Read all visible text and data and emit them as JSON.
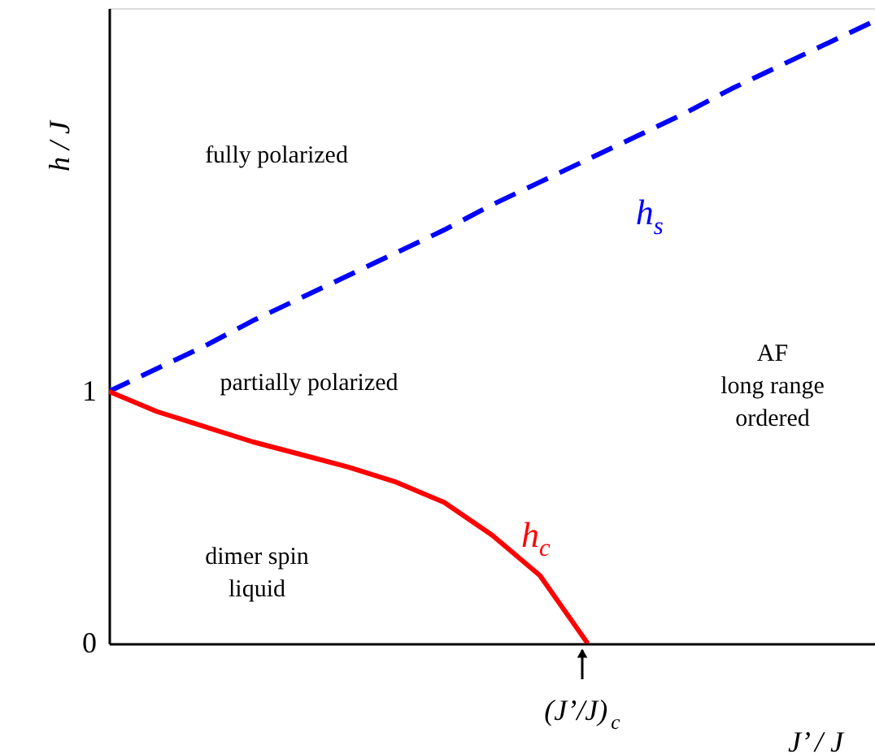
{
  "chart_data": {
    "type": "line",
    "xlabel": "J’ / J",
    "ylabel": "h / J",
    "categories": [
      null,
      null,
      null,
      null,
      null,
      null,
      null,
      null,
      null,
      null,
      null,
      null,
      null,
      null,
      null,
      null,
      null
    ],
    "ylim": [
      0,
      2.52
    ],
    "yticks": [
      0,
      1
    ],
    "grid": false,
    "legend": false,
    "marker": "none",
    "series": [
      {
        "name": "h$_{s}$",
        "color": "#0000ff",
        "line_style": "dashed",
        "values": [
          1,
          1.09,
          1.18,
          1.28,
          1.37,
          1.46,
          1.55,
          1.64,
          1.74,
          1.83,
          1.92,
          2.01,
          2.1,
          2.2,
          2.29,
          2.38,
          2.47
        ]
      },
      {
        "name": "h$_{c}$",
        "color": "#ff0000",
        "line_style": "solid",
        "values": [
          1,
          0.92,
          0.86,
          0.8,
          0.75,
          0.7,
          0.64,
          0.56,
          0.43,
          0.27,
          0,
          null,
          null,
          null,
          null,
          null,
          null
        ]
      }
    ],
    "annotations": [
      "fully polarized",
      "partially polarized",
      "AF\nlong range\nordered",
      "dimer spin\nliquid",
      "(J’/J)$_{c}$"
    ]
  }
}
